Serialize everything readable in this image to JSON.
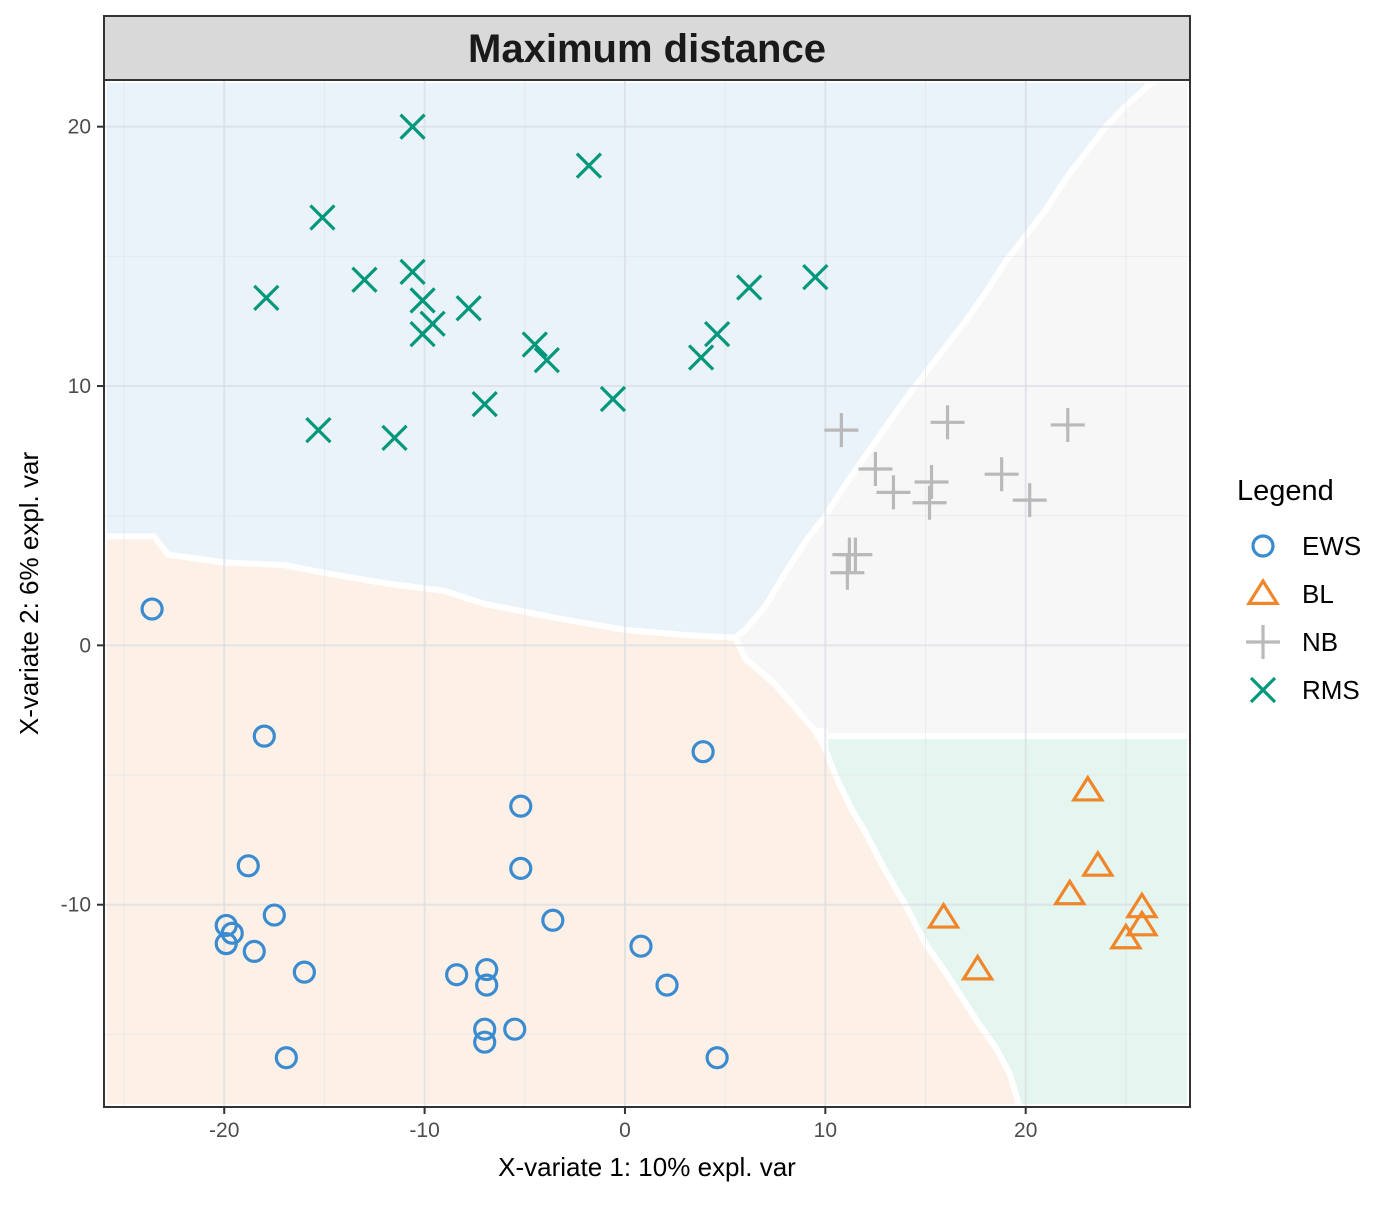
{
  "chart_data": {
    "type": "scatter",
    "title": "Maximum distance",
    "xlabel": "X-variate 1: 10% expl. var",
    "ylabel": "X-variate 2: 6% expl. var",
    "xlim": [
      -26,
      28.2
    ],
    "ylim": [
      -17.8,
      21.8
    ],
    "x_ticks": [
      -20,
      -10,
      0,
      10,
      20
    ],
    "y_ticks": [
      -10,
      0,
      10,
      20
    ],
    "grid": true,
    "legend": {
      "title": "Legend",
      "position": "right"
    },
    "regions": [
      {
        "name": "EWS",
        "color": "#fdf1e7",
        "polygon": [
          [
            -26,
            4.2
          ],
          [
            -23.5,
            4.2
          ],
          [
            -22.8,
            3.5
          ],
          [
            -20,
            3.2
          ],
          [
            -17,
            3.1
          ],
          [
            -15,
            2.8
          ],
          [
            -12,
            2.4
          ],
          [
            -9,
            2.1
          ],
          [
            -7,
            1.6
          ],
          [
            -3,
            1
          ],
          [
            0,
            0.6
          ],
          [
            3,
            0.4
          ],
          [
            5.5,
            0.3
          ],
          [
            6,
            -0.5
          ],
          [
            7.5,
            -1.5
          ],
          [
            9.5,
            -3.3
          ],
          [
            10,
            -4
          ],
          [
            10.5,
            -5
          ],
          [
            11.3,
            -6.3
          ],
          [
            12,
            -7.2
          ],
          [
            13,
            -8.7
          ],
          [
            14,
            -10
          ],
          [
            15,
            -11.5
          ],
          [
            16,
            -12.6
          ],
          [
            16.5,
            -13.2
          ],
          [
            17.5,
            -14.4
          ],
          [
            18.5,
            -15.5
          ],
          [
            19.2,
            -16.5
          ],
          [
            19.7,
            -17.8
          ],
          [
            -26,
            -17.8
          ]
        ]
      },
      {
        "name": "RMS",
        "color": "#eaf2fa",
        "polygon": [
          [
            -26,
            21.8
          ],
          [
            26.5,
            21.8
          ],
          [
            26.5,
            22
          ],
          [
            26,
            21.5
          ],
          [
            25,
            20.8
          ],
          [
            24,
            20
          ],
          [
            23,
            19
          ],
          [
            22,
            18
          ],
          [
            21,
            16.8
          ],
          [
            20,
            15.8
          ],
          [
            19,
            14.8
          ],
          [
            18,
            13.6
          ],
          [
            17,
            12.5
          ],
          [
            16,
            11.5
          ],
          [
            15,
            10.5
          ],
          [
            14,
            9.5
          ],
          [
            13,
            8.4
          ],
          [
            12,
            7.3
          ],
          [
            11,
            6.2
          ],
          [
            10,
            5
          ],
          [
            9,
            4
          ],
          [
            8,
            2.8
          ],
          [
            7,
            1.5
          ],
          [
            6,
            0.6
          ],
          [
            5.5,
            0.3
          ],
          [
            3,
            0.4
          ],
          [
            0,
            0.6
          ],
          [
            -3,
            1
          ],
          [
            -7,
            1.6
          ],
          [
            -9,
            2.1
          ],
          [
            -12,
            2.4
          ],
          [
            -15,
            2.8
          ],
          [
            -17,
            3.1
          ],
          [
            -20,
            3.2
          ],
          [
            -22.8,
            3.5
          ],
          [
            -23.5,
            4.2
          ],
          [
            -26,
            4.2
          ]
        ]
      },
      {
        "name": "NB",
        "color": "#f7f7f7",
        "polygon": [
          [
            26.5,
            21.8
          ],
          [
            28.2,
            21.8
          ],
          [
            28.2,
            -3.5
          ],
          [
            10,
            -3.5
          ],
          [
            10,
            -3.3
          ],
          [
            9.5,
            -3.3
          ],
          [
            7.5,
            -1.5
          ],
          [
            6,
            -0.5
          ],
          [
            5.5,
            0.3
          ],
          [
            6,
            0.6
          ],
          [
            7,
            1.5
          ],
          [
            8,
            2.8
          ],
          [
            9,
            4
          ],
          [
            10,
            5
          ],
          [
            11,
            6.2
          ],
          [
            12,
            7.3
          ],
          [
            13,
            8.4
          ],
          [
            14,
            9.5
          ],
          [
            15,
            10.5
          ],
          [
            16,
            11.5
          ],
          [
            17,
            12.5
          ],
          [
            18,
            13.6
          ],
          [
            19,
            14.8
          ],
          [
            20,
            15.8
          ],
          [
            21,
            16.8
          ],
          [
            22,
            18
          ],
          [
            23,
            19
          ],
          [
            24,
            20
          ],
          [
            25,
            20.8
          ],
          [
            26,
            21.5
          ]
        ]
      },
      {
        "name": "BL",
        "color": "#e5f5ef",
        "polygon": [
          [
            10,
            -3.5
          ],
          [
            28.2,
            -3.5
          ],
          [
            28.2,
            -17.8
          ],
          [
            19.7,
            -17.8
          ],
          [
            19.2,
            -16.5
          ],
          [
            18.5,
            -15.5
          ],
          [
            17.5,
            -14.4
          ],
          [
            16.5,
            -13.2
          ],
          [
            16,
            -12.6
          ],
          [
            15,
            -11.5
          ],
          [
            14,
            -10
          ],
          [
            13,
            -8.7
          ],
          [
            12,
            -7.2
          ],
          [
            11.3,
            -6.3
          ],
          [
            10.5,
            -5
          ],
          [
            10,
            -4
          ]
        ]
      }
    ],
    "series": [
      {
        "name": "EWS",
        "color": "#3b8bd0",
        "shape": "circle",
        "points": [
          [
            -23.6,
            1.4
          ],
          [
            -18,
            -3.5
          ],
          [
            -18.8,
            -8.5
          ],
          [
            -19.9,
            -10.8
          ],
          [
            -19.6,
            -11.1
          ],
          [
            -19.9,
            -11.5
          ],
          [
            -18.5,
            -11.8
          ],
          [
            -17.5,
            -10.4
          ],
          [
            -16,
            -12.6
          ],
          [
            -16.9,
            -15.9
          ],
          [
            -8.4,
            -12.7
          ],
          [
            -6.9,
            -12.5
          ],
          [
            -6.9,
            -13.1
          ],
          [
            -7,
            -14.8
          ],
          [
            -7,
            -15.3
          ],
          [
            -5.5,
            -14.8
          ],
          [
            -5.2,
            -6.2
          ],
          [
            -5.2,
            -8.6
          ],
          [
            -3.6,
            -10.6
          ],
          [
            0.8,
            -11.6
          ],
          [
            2.1,
            -13.1
          ],
          [
            3.9,
            -4.1
          ],
          [
            4.6,
            -15.9
          ]
        ]
      },
      {
        "name": "BL",
        "color": "#f0862a",
        "shape": "triangle",
        "points": [
          [
            23.1,
            -5.6
          ],
          [
            23.6,
            -8.5
          ],
          [
            22.2,
            -9.6
          ],
          [
            15.9,
            -10.5
          ],
          [
            17.6,
            -12.5
          ],
          [
            25.8,
            -10.1
          ],
          [
            25.8,
            -10.8
          ],
          [
            25,
            -11.3
          ]
        ]
      },
      {
        "name": "NB",
        "color": "#b9b9b9",
        "shape": "plus",
        "points": [
          [
            10.8,
            8.3
          ],
          [
            16.1,
            8.6
          ],
          [
            22.1,
            8.5
          ],
          [
            12.5,
            6.8
          ],
          [
            13.4,
            5.9
          ],
          [
            15.3,
            6.3
          ],
          [
            15.2,
            5.5
          ],
          [
            18.8,
            6.6
          ],
          [
            20.2,
            5.6
          ],
          [
            11.2,
            3.5
          ],
          [
            11.5,
            3.5
          ],
          [
            11.1,
            2.8
          ]
        ]
      },
      {
        "name": "RMS",
        "color": "#00977a",
        "shape": "cross",
        "points": [
          [
            -10.6,
            20
          ],
          [
            -1.8,
            18.5
          ],
          [
            -15.1,
            16.5
          ],
          [
            -17.9,
            13.4
          ],
          [
            -13,
            14.1
          ],
          [
            -10.6,
            14.4
          ],
          [
            -10.1,
            13.3
          ],
          [
            -9.6,
            12.4
          ],
          [
            -10.1,
            12
          ],
          [
            -7.8,
            13
          ],
          [
            -4.5,
            11.6
          ],
          [
            -3.9,
            11
          ],
          [
            -7,
            9.3
          ],
          [
            -0.6,
            9.5
          ],
          [
            3.8,
            11.1
          ],
          [
            4.6,
            12
          ],
          [
            6.2,
            13.8
          ],
          [
            9.5,
            14.2
          ],
          [
            -15.3,
            8.3
          ],
          [
            -11.5,
            8
          ]
        ]
      }
    ]
  }
}
